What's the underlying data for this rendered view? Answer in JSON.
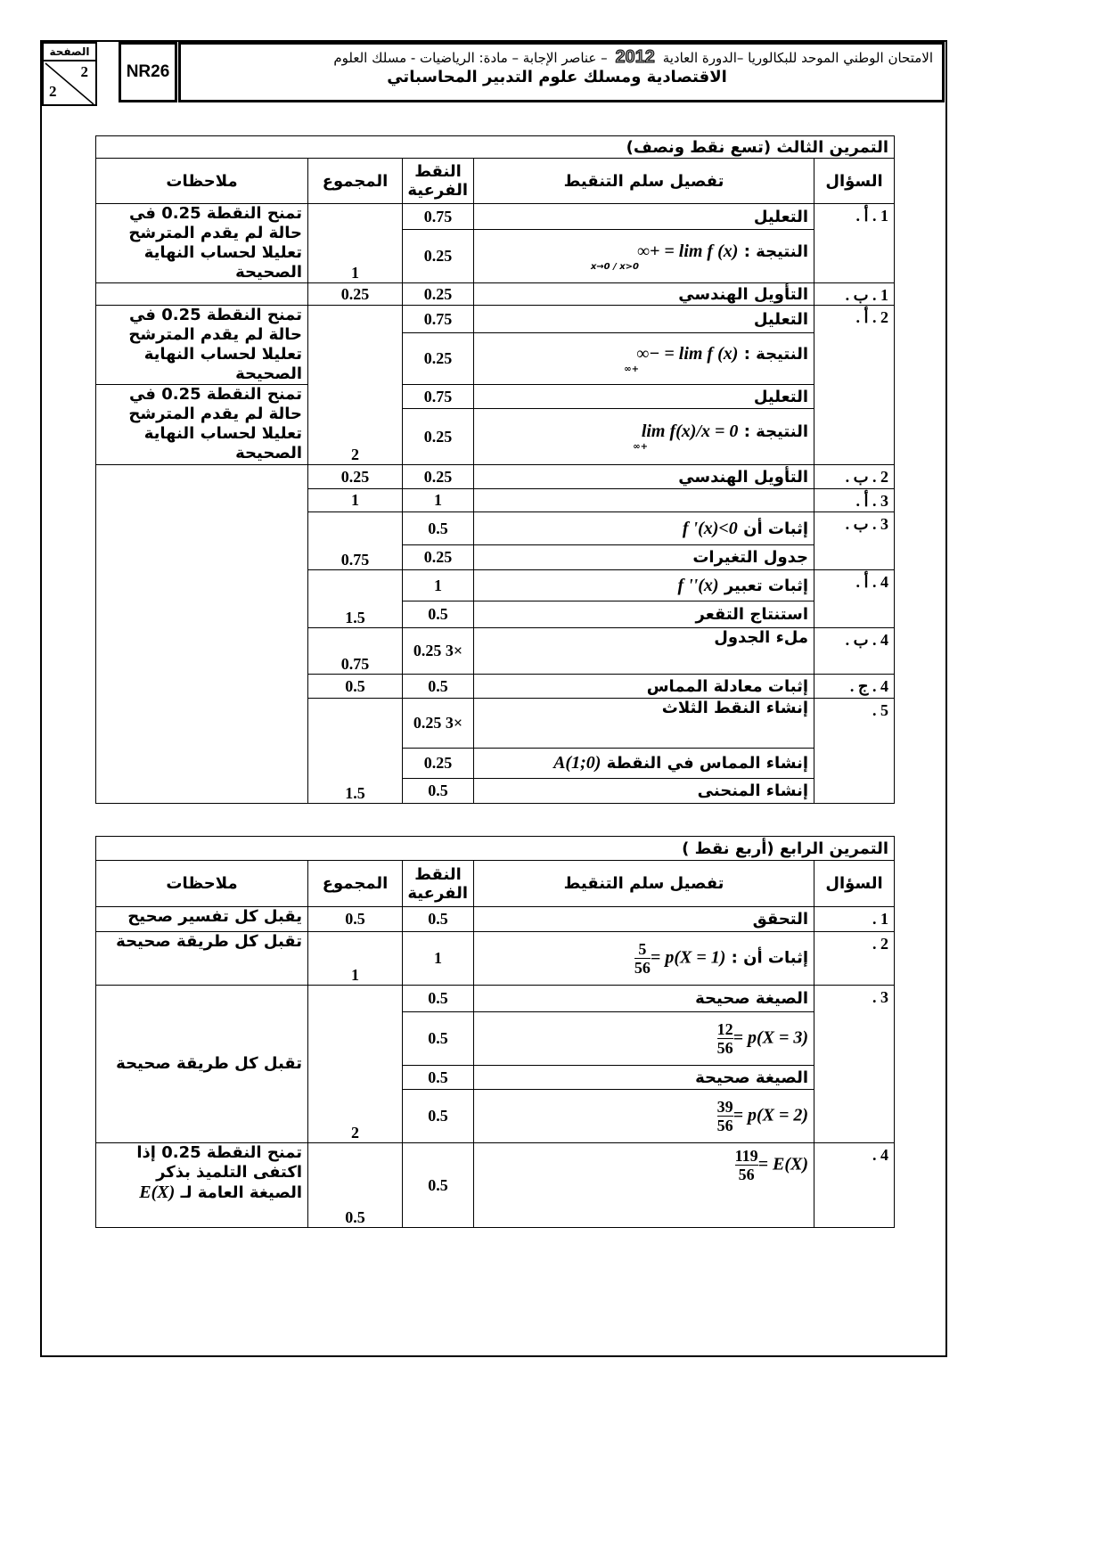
{
  "header": {
    "line1_a": "الامتحان الوطني الموحد للبكالوريا –الدورة العادية",
    "year": "2012",
    "line1_b": "– عناصر الإجابة – مادة: الرياضيات - مسلك العلوم",
    "line2": "الاقتصادية ومسلك علوم التدبير المحاسباتي",
    "code": "NR26",
    "page_label": "الصفحة",
    "page_num": "2",
    "page_total": "2"
  },
  "columns": {
    "question": "السؤال",
    "detail": "تفصيل سلم التنقيط",
    "sub": "النقط الفرعية",
    "total": "المجموع",
    "notes": "ملاحظات"
  },
  "ex3": {
    "title": "التمرين الثالث (تسع نقط ونصف)",
    "rows": [
      {
        "q": "1 . أ .",
        "d": "التعليل",
        "s": "0.75"
      },
      {
        "d": "النتيجة : ",
        "math": "lim f (x) = +∞",
        "sub_lim": "x→0 / x>0",
        "s": "0.25",
        "t": "1"
      },
      {
        "q": "1 . ب .",
        "d": "التأويل الهندسي",
        "s": "0.25",
        "t": "0.25"
      },
      {
        "q": "2 . أ .",
        "d": "التعليل",
        "s": "0.75"
      },
      {
        "d": "النتيجة : ",
        "math": "lim f (x) = −∞",
        "sub_lim": "+∞",
        "s": "0.25"
      },
      {
        "d": "التعليل",
        "s": "0.75"
      },
      {
        "d": "النتيجة : ",
        "math": "lim f(x)/x = 0",
        "sub_lim": "+∞",
        "s": "0.25",
        "t": "2"
      },
      {
        "q": "2 . ب .",
        "d": "التأويل الهندسي",
        "s": "0.25",
        "t": "0.25"
      },
      {
        "q": "3 . أ .",
        "d": "",
        "s": "1",
        "t": "1"
      },
      {
        "q": "3 . ب .",
        "d": "إثبات أن ",
        "math": "f '(x)<0",
        "s": "0.5"
      },
      {
        "d": "جدول التغيرات",
        "s": "0.25",
        "t": "0.75"
      },
      {
        "q": "4 . أ .",
        "d": "إثبات تعبير ",
        "math": "f ''(x)",
        "s": "1"
      },
      {
        "d": "استنتاج التقعر",
        "s": "0.5",
        "t": "1.5"
      },
      {
        "q": "4 . ب .",
        "d": "ملء الجدول",
        "s": "×3 0.25",
        "t": "0.75"
      },
      {
        "q": "4 . ج .",
        "d": "إثبات معادلة المماس",
        "s": "0.5",
        "t": "0.5"
      },
      {
        "q": "5 .",
        "d": "إنشاء النقط الثلاث",
        "s": "×3 0.25"
      },
      {
        "d": "إنشاء المماس في النقطة ",
        "math": "A(1;0)",
        "s": "0.25"
      },
      {
        "d": "إنشاء المنحنى",
        "s": "0.5",
        "t": "1.5"
      }
    ],
    "notes": "تمنح النقطة 0.25 في حالة لم يقدم المترشح تعليلا لحساب النهاية الصحيحة"
  },
  "ex4": {
    "title": "التمرين الرابع (أربع نقط )",
    "rows": [
      {
        "q": "1 .",
        "d": "التحقق",
        "s": "0.5",
        "t": "0.5",
        "n": "يقبل كل تفسير صحيح"
      },
      {
        "q": "2 .",
        "d": "إثبات أن : ",
        "math": "p(X = 1) =",
        "num": "5",
        "den": "56",
        "s": "1",
        "t": "1",
        "n": "تقبل كل طريقة صحيحة"
      },
      {
        "q": "3 .",
        "d": "الصيغة صحيحة",
        "s": "0.5"
      },
      {
        "math": "p(X = 3) =",
        "num": "12",
        "den": "56",
        "s": "0.5"
      },
      {
        "d": "الصيغة صحيحة",
        "s": "0.5"
      },
      {
        "math": "p(X = 2) =",
        "num": "39",
        "den": "56",
        "s": "0.5",
        "t": "2",
        "n": "تقبل كل طريقة صحيحة"
      },
      {
        "q": "4 .",
        "math": "E(X) =",
        "num": "119",
        "den": "56",
        "s": "0.5",
        "t": "0.5",
        "n": "تمنح النقطة 0.25 إذا اكتفى التلميذ بذكر الصيغة العامة لـ",
        "n_math": "E(X)"
      }
    ]
  }
}
